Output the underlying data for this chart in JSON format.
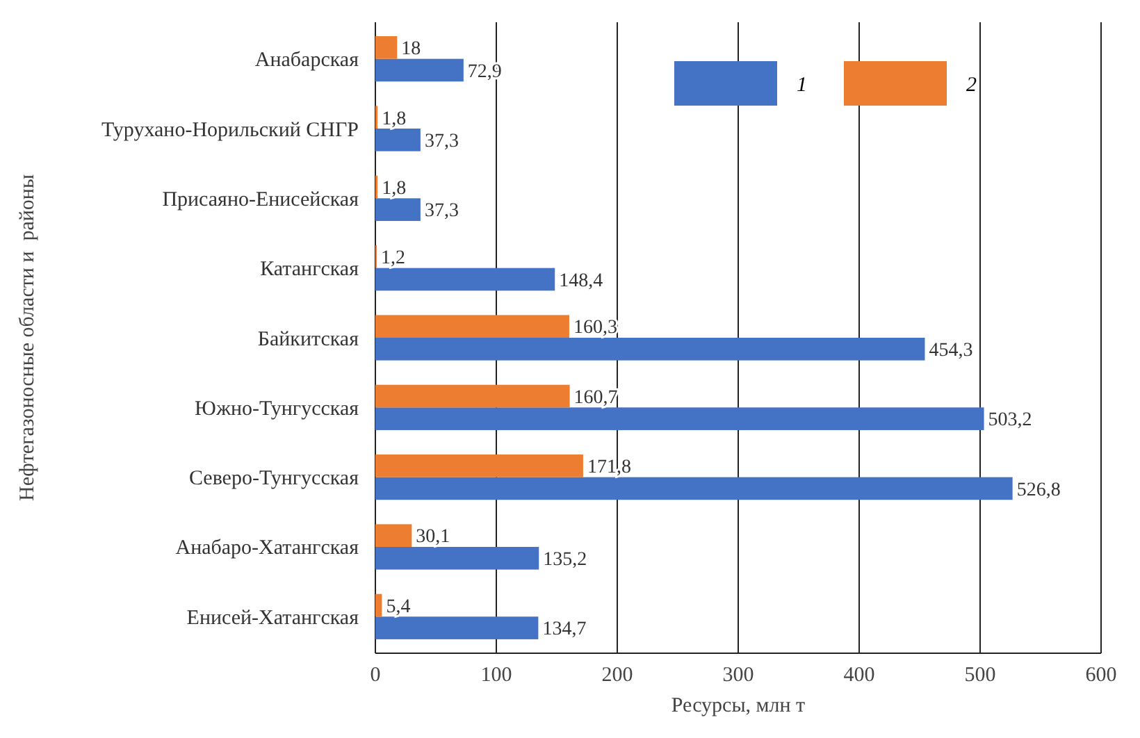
{
  "chart_data": {
    "type": "bar",
    "orientation": "horizontal",
    "xlabel": "Ресурсы, млн т",
    "ylabel": "Нефтегазоносные области и  районы",
    "categories": [
      "Анабарская",
      "Турухано-Норильский СНГР",
      "Присаяно-Енисейская",
      "Катангская",
      "Байкитская",
      "Южно-Тунгусская",
      "Северо-Тунгусская",
      "Анабаро-Хатангская",
      "Енисей-Хатангская"
    ],
    "series": [
      {
        "name": "1",
        "color": "#4472c4",
        "values": [
          72.9,
          37.3,
          37.3,
          148.4,
          454.3,
          503.2,
          526.8,
          135.2,
          134.7
        ],
        "value_labels": [
          "72,9",
          "37,3",
          "37,3",
          "148,4",
          "454,3",
          "503,2",
          "526,8",
          "135,2",
          "134,7"
        ]
      },
      {
        "name": "2",
        "color": "#ed7d31",
        "values": [
          18,
          1.8,
          1.8,
          1.2,
          160.3,
          160.7,
          171.8,
          30.1,
          5.4
        ],
        "value_labels": [
          "18",
          "1,8",
          "1,8",
          "1,2",
          "160,3",
          "160,7",
          "171,8",
          "30,1",
          "5,4"
        ]
      }
    ],
    "xlim": [
      0,
      600
    ],
    "xticks": [
      0,
      100,
      200,
      300,
      400,
      500,
      600
    ],
    "grid": "x",
    "legend": "top right"
  }
}
